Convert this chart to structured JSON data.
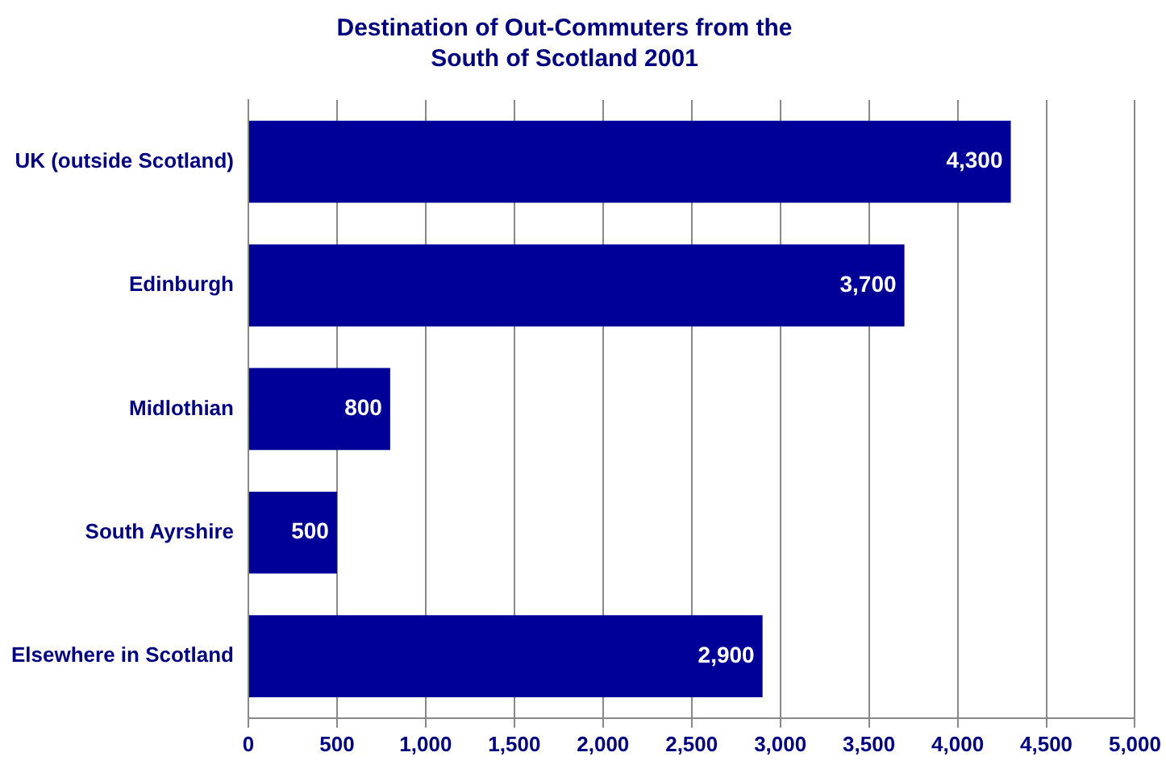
{
  "chart_data": {
    "type": "bar",
    "orientation": "horizontal",
    "title": "Destination of Out-Commuters from the South of Scotland 2001",
    "categories": [
      "UK (outside Scotland)",
      "Edinburgh",
      "Midlothian",
      "South Ayrshire",
      "Elsewhere in Scotland"
    ],
    "values": [
      4300,
      3700,
      800,
      500,
      2900
    ],
    "value_labels": [
      "4,300",
      "3,700",
      "800",
      "500",
      "2,900"
    ],
    "color": "#000099",
    "xlim": [
      0,
      5000
    ],
    "xticks": [
      0,
      500,
      {
        "value": 1000,
        "label": "1,000"
      },
      {
        "value": 1500,
        "label": "1,500"
      },
      {
        "value": 2000,
        "label": "2,000"
      },
      {
        "value": 2500,
        "label": "2,500"
      },
      {
        "value": 3000,
        "label": "3,000"
      },
      {
        "value": 3500,
        "label": "3,500"
      },
      {
        "value": 4000,
        "label": "4,000"
      },
      {
        "value": 4500,
        "label": "4,500"
      },
      {
        "value": 5000,
        "label": "5,000"
      }
    ],
    "grid": "x",
    "legend": false
  }
}
